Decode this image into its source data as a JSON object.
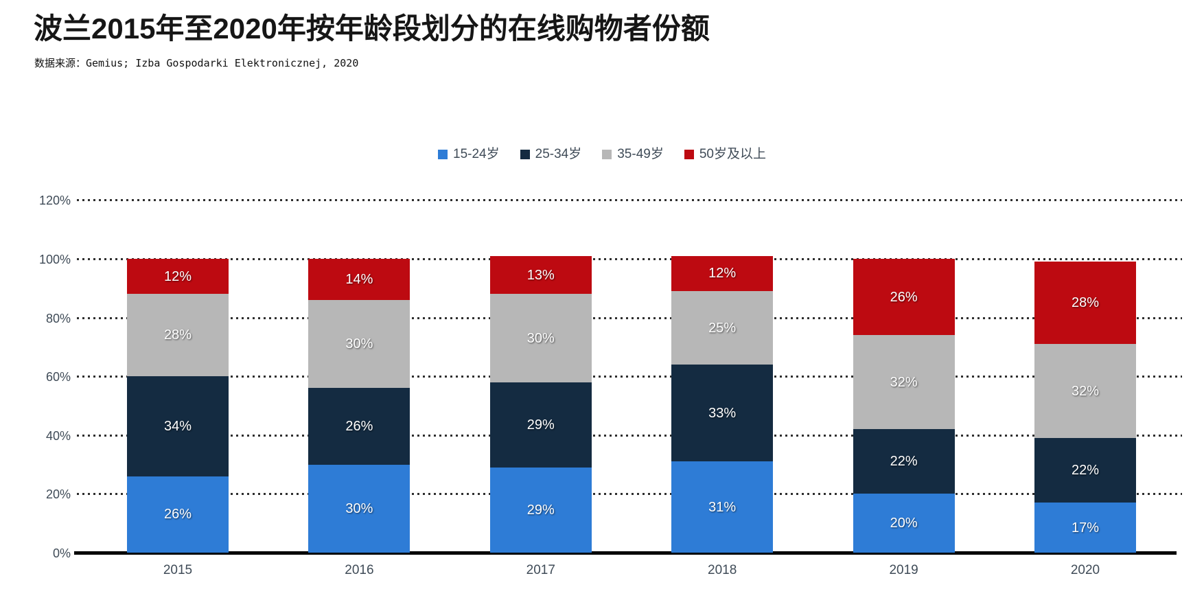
{
  "title": "波兰2015年至2020年按年龄段划分的在线购物者份额",
  "source": "数据来源：Gemius; Izba Gospodarki Elektronicznej, 2020",
  "colors": {
    "series_blue": "#2E7CD6",
    "series_navy": "#142B41",
    "series_gray": "#B7B7B7",
    "series_red": "#BD0A11",
    "axis_text": "#3F4B57",
    "baseline": "#000000",
    "grid_dots": "#2E2E2E",
    "value_label_text": "#FFFFFF",
    "title_text": "#161616"
  },
  "chart_data": {
    "type": "bar",
    "stacked": true,
    "title": "波兰2015年至2020年按年龄段划分的在线购物者份额",
    "subtitle_source": "数据来源：Gemius; Izba Gospodarki Elektronicznej, 2020",
    "categories": [
      "2015",
      "2016",
      "2017",
      "2018",
      "2019",
      "2020"
    ],
    "series": [
      {
        "name": "15-24岁",
        "color": "#2E7CD6",
        "values": [
          26,
          30,
          29,
          31,
          20,
          17
        ]
      },
      {
        "name": "25-34岁",
        "color": "#142B41",
        "values": [
          34,
          26,
          29,
          33,
          22,
          22
        ]
      },
      {
        "name": "35-49岁",
        "color": "#B7B7B7",
        "values": [
          28,
          30,
          30,
          25,
          32,
          32
        ]
      },
      {
        "name": "50岁及以上",
        "color": "#BD0A11",
        "values": [
          12,
          14,
          13,
          12,
          26,
          28
        ]
      }
    ],
    "value_suffix": "%",
    "y_ticks": [
      "0%",
      "20%",
      "40%",
      "60%",
      "80%",
      "100%",
      "120%"
    ],
    "ylim": [
      0,
      120
    ],
    "xlabel": "",
    "ylabel": "",
    "grid": "horizontal-dotted",
    "legend_position": "top-center",
    "value_labels": "inside-white"
  }
}
